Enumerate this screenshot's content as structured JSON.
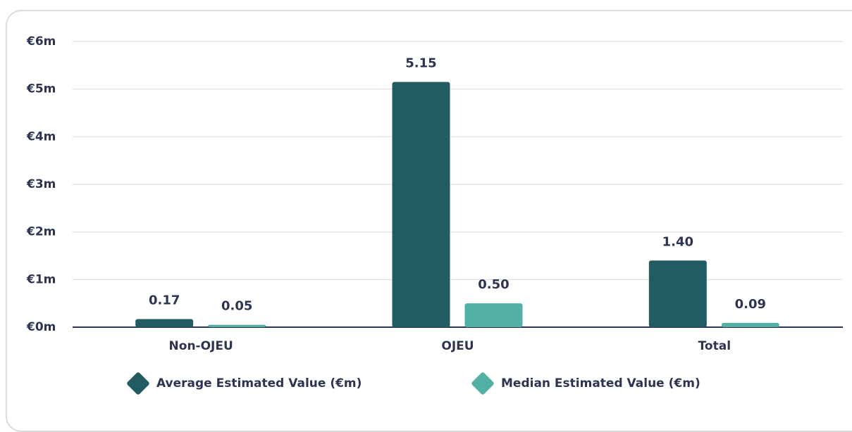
{
  "chart_data": {
    "type": "bar",
    "categories": [
      "Non-OJEU",
      "OJEU",
      "Total"
    ],
    "series": [
      {
        "name": "Average Estimated Value (€m)",
        "color": "#225c62",
        "values": [
          0.17,
          5.15,
          1.4
        ],
        "value_labels": [
          "0.17",
          "5.15",
          "1.40"
        ]
      },
      {
        "name": "Median Estimated Value (€m)",
        "color": "#52b0a5",
        "values": [
          0.05,
          0.5,
          0.09
        ],
        "value_labels": [
          "0.05",
          "0.50",
          "0.09"
        ]
      }
    ],
    "ylim": [
      0,
      6
    ],
    "yticks": [
      {
        "value": 0,
        "label": "€0m"
      },
      {
        "value": 1,
        "label": "€1m"
      },
      {
        "value": 2,
        "label": "€2m"
      },
      {
        "value": 3,
        "label": "€3m"
      },
      {
        "value": 4,
        "label": "€4m"
      },
      {
        "value": 5,
        "label": "€5m"
      },
      {
        "value": 6,
        "label": "€6m"
      }
    ],
    "grid": true,
    "legend": "bottom"
  }
}
